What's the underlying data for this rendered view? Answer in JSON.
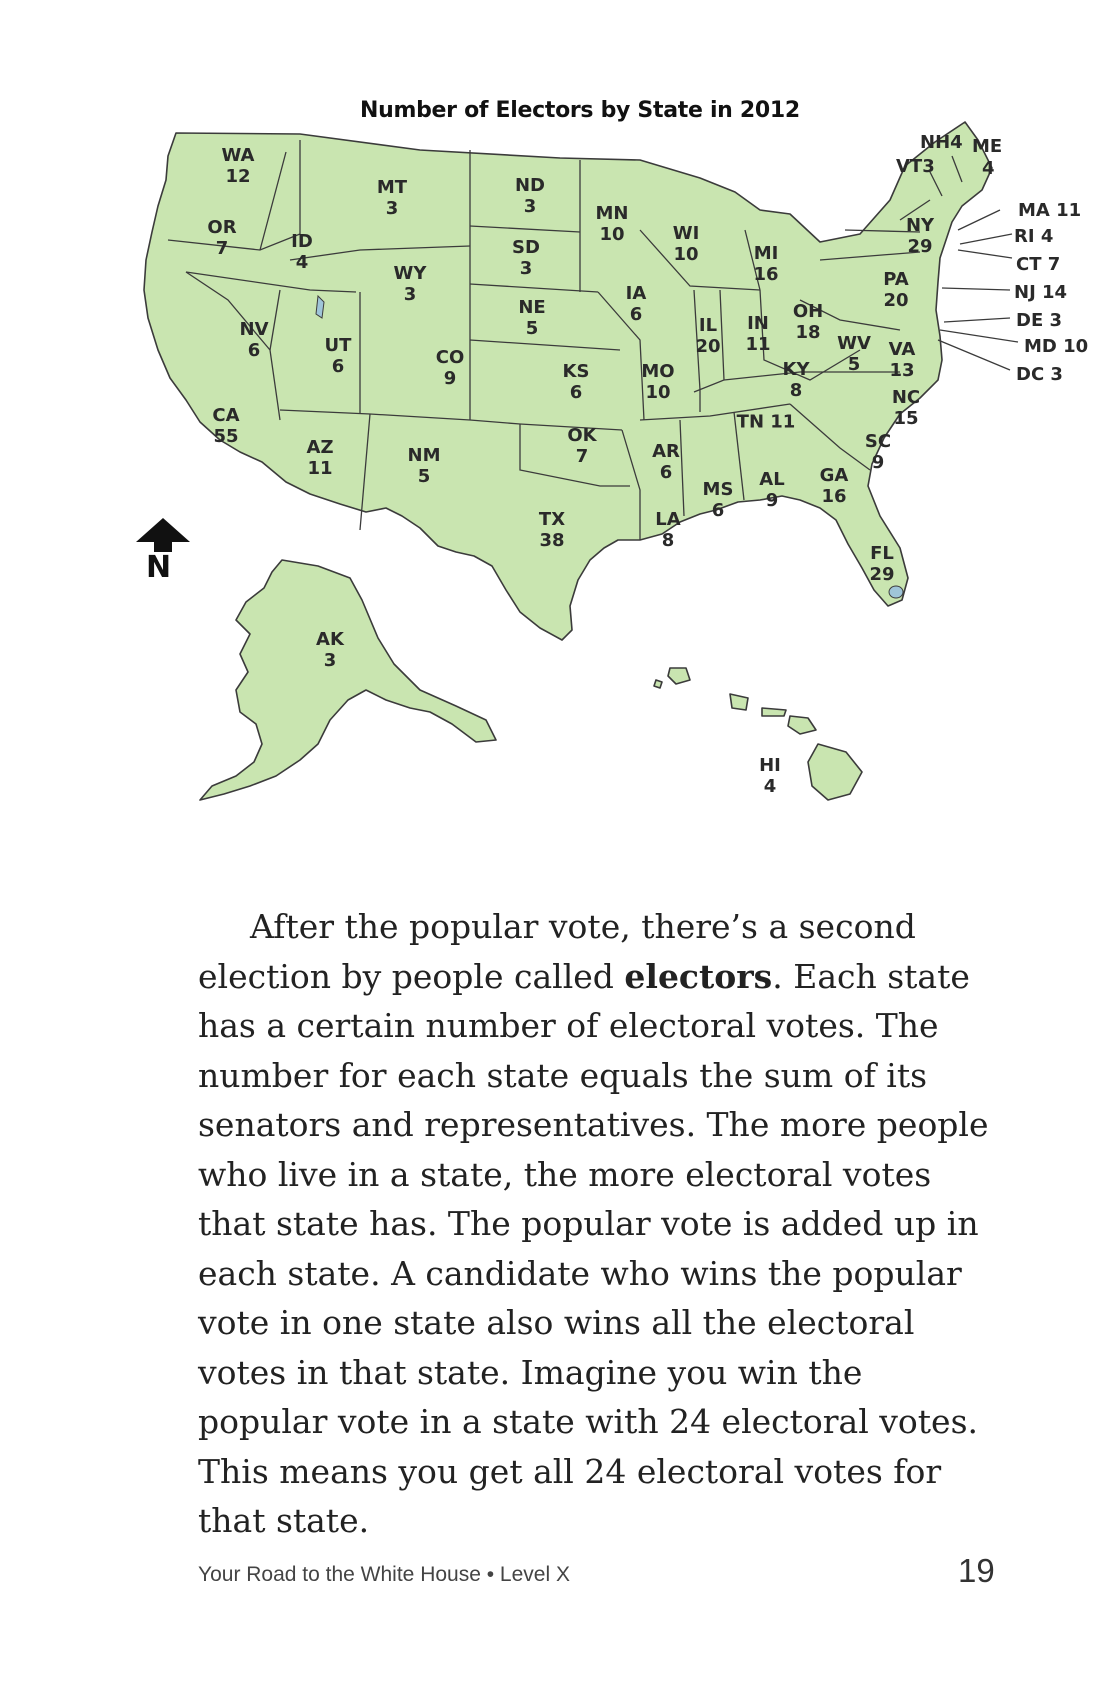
{
  "map": {
    "title": "Number of Electors by State in 2012",
    "land_color": "#c9e5b0",
    "border_color": "#3b3b3b",
    "states": [
      {
        "code": "WA",
        "value": "12"
      },
      {
        "code": "OR",
        "value": "7"
      },
      {
        "code": "CA",
        "value": "55"
      },
      {
        "code": "ID",
        "value": "4"
      },
      {
        "code": "NV",
        "value": "6"
      },
      {
        "code": "MT",
        "value": "3"
      },
      {
        "code": "WY",
        "value": "3"
      },
      {
        "code": "UT",
        "value": "6"
      },
      {
        "code": "AZ",
        "value": "11"
      },
      {
        "code": "CO",
        "value": "9"
      },
      {
        "code": "NM",
        "value": "5"
      },
      {
        "code": "ND",
        "value": "3"
      },
      {
        "code": "SD",
        "value": "3"
      },
      {
        "code": "NE",
        "value": "5"
      },
      {
        "code": "KS",
        "value": "6"
      },
      {
        "code": "OK",
        "value": "7"
      },
      {
        "code": "TX",
        "value": "38"
      },
      {
        "code": "MN",
        "value": "10"
      },
      {
        "code": "IA",
        "value": "6"
      },
      {
        "code": "MO",
        "value": "10"
      },
      {
        "code": "AR",
        "value": "6"
      },
      {
        "code": "LA",
        "value": "8"
      },
      {
        "code": "WI",
        "value": "10"
      },
      {
        "code": "IL",
        "value": "20"
      },
      {
        "code": "MI",
        "value": "16"
      },
      {
        "code": "IN",
        "value": "11"
      },
      {
        "code": "OH",
        "value": "18"
      },
      {
        "code": "KY",
        "value": "8"
      },
      {
        "code": "TN",
        "value": "11"
      },
      {
        "code": "MS",
        "value": "6"
      },
      {
        "code": "AL",
        "value": "9"
      },
      {
        "code": "GA",
        "value": "16"
      },
      {
        "code": "FL",
        "value": "29"
      },
      {
        "code": "SC",
        "value": "9"
      },
      {
        "code": "NC",
        "value": "15"
      },
      {
        "code": "VA",
        "value": "13"
      },
      {
        "code": "WV",
        "value": "5"
      },
      {
        "code": "PA",
        "value": "20"
      },
      {
        "code": "NY",
        "value": "29"
      },
      {
        "code": "AK",
        "value": "3"
      },
      {
        "code": "HI",
        "value": "4"
      }
    ],
    "callouts": [
      {
        "label": "NH4"
      },
      {
        "label": "VT3"
      },
      {
        "label": "ME"
      },
      {
        "label": "4"
      },
      {
        "label": "MA 11"
      },
      {
        "label": "RI 4"
      },
      {
        "label": "CT 7"
      },
      {
        "label": "NJ 14"
      },
      {
        "label": "DE 3"
      },
      {
        "label": "MD 10"
      },
      {
        "label": "DC 3"
      }
    ],
    "compass_label": "N"
  },
  "text": {
    "p1_a": "After the popular vote, there’s a second election by people called ",
    "p1_bold": "electors",
    "p1_b": ". Each state has a certain number of electoral votes. The number for each state equals the sum of its senators and representatives. The more people who live in a state, the more electoral votes that state has. The popular vote is added up in each state. A candidate who wins the popular vote in one state also wins all the electoral votes in that state. Imagine you win the popular vote in a state with 24 electoral votes. This means you get all 24 electoral votes for that state."
  },
  "footer": {
    "book_title": "Your Road to the White House • Level X",
    "page_number": "19"
  }
}
